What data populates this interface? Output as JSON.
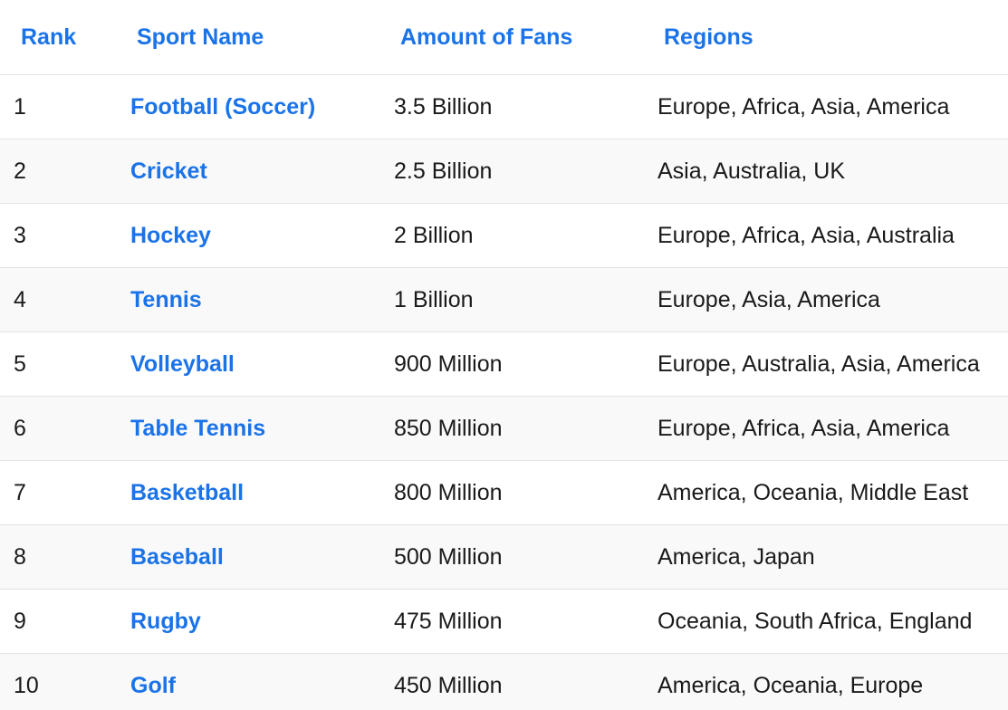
{
  "header": {
    "rank": "Rank",
    "sport_name": "Sport Name",
    "fans": "Amount of Fans",
    "regions": "Regions"
  },
  "rows": [
    {
      "rank": "1",
      "sport": "Football (Soccer)",
      "fans": "3.5 Billion",
      "regions": "Europe, Africa, Asia, America"
    },
    {
      "rank": "2",
      "sport": "Cricket",
      "fans": "2.5 Billion",
      "regions": "Asia, Australia, UK"
    },
    {
      "rank": "3",
      "sport": "Hockey",
      "fans": "2 Billion",
      "regions": "Europe, Africa, Asia, Australia"
    },
    {
      "rank": "4",
      "sport": "Tennis",
      "fans": "1 Billion",
      "regions": "Europe, Asia, America"
    },
    {
      "rank": "5",
      "sport": "Volleyball",
      "fans": "900 Million",
      "regions": "Europe, Australia, Asia, America"
    },
    {
      "rank": "6",
      "sport": "Table Tennis",
      "fans": "850 Million",
      "regions": "Europe, Africa, Asia, America"
    },
    {
      "rank": "7",
      "sport": "Basketball",
      "fans": "800 Million",
      "regions": "America, Oceania, Middle East"
    },
    {
      "rank": "8",
      "sport": "Baseball",
      "fans": "500 Million",
      "regions": "America, Japan"
    },
    {
      "rank": "9",
      "sport": "Rugby",
      "fans": "475 Million",
      "regions": "Oceania, South Africa, England"
    },
    {
      "rank": "10",
      "sport": "Golf",
      "fans": "450 Million",
      "regions": "America, Oceania, Europe"
    }
  ]
}
